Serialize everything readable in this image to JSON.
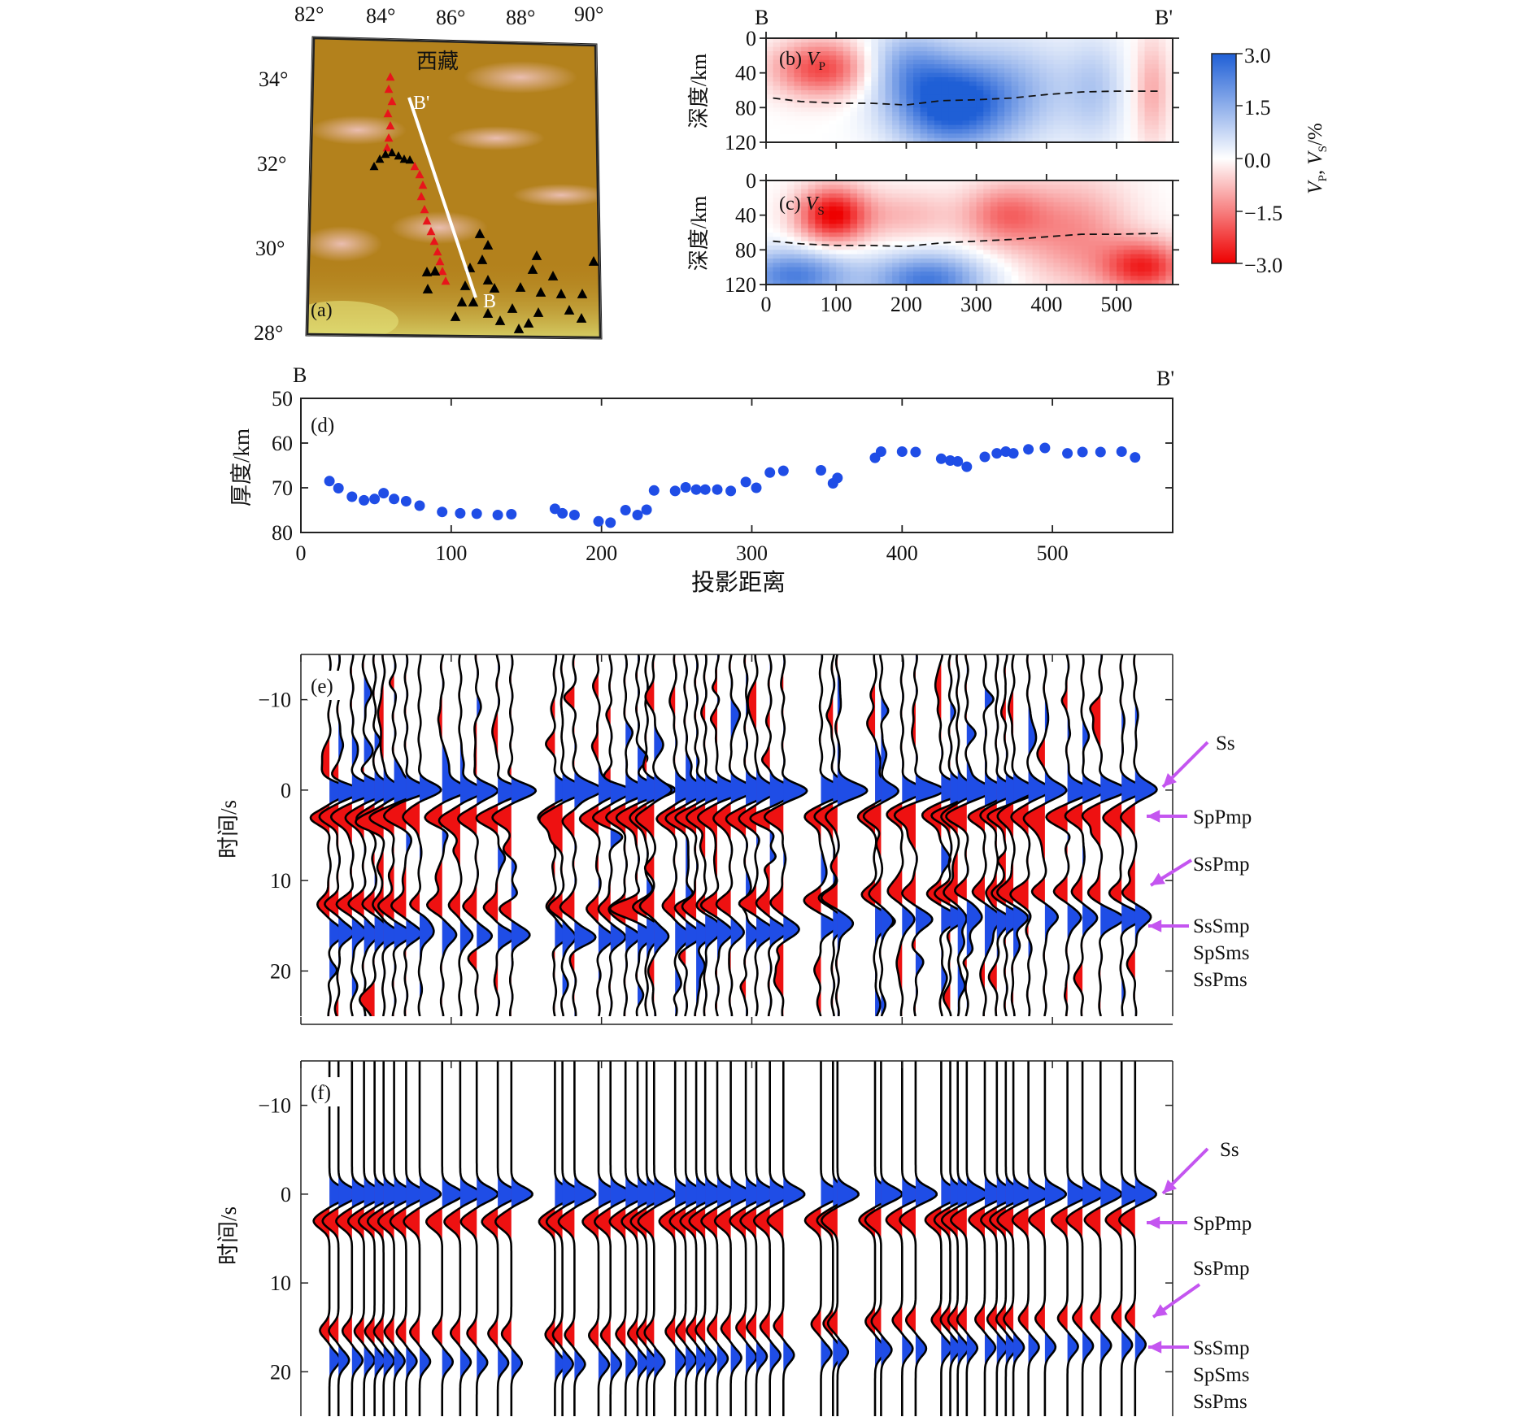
{
  "map_panel": {
    "panel_label": "(a)",
    "region_label": "西藏",
    "profile_start_label": "B",
    "profile_end_label": "B'",
    "lon_ticks": [
      "82°",
      "84°",
      "86°",
      "88°",
      "90°"
    ],
    "lat_ticks": [
      "34°",
      "32°",
      "30°",
      "28°"
    ],
    "colors": {
      "terrain": "#b3811c",
      "terrain_light": "#c9a75c",
      "lowland": "#d8d36a",
      "profile_line": "#ffffff",
      "station_red": "#e8141b",
      "station_black": "#000000"
    }
  },
  "chart_data": [
    {
      "id": "b",
      "type": "heatmap",
      "panel_label": "(b)",
      "quantity": "V",
      "quantity_subscript": "P",
      "left_label": "B",
      "right_label": "B'",
      "ylabel": "深度/km",
      "x_ticks": [
        0,
        100,
        200,
        300,
        400,
        500
      ],
      "y_ticks": [
        0,
        40,
        80,
        120
      ],
      "xlim": [
        0,
        580
      ],
      "ylim": [
        0,
        120
      ],
      "anomalies": [
        {
          "x": 80,
          "depth": 35,
          "value": -2.2,
          "rx": 70,
          "rz": 32
        },
        {
          "x": 260,
          "depth": 78,
          "value": 3.0,
          "rx": 80,
          "rz": 48
        },
        {
          "x": 200,
          "depth": 30,
          "value": 1.4,
          "rx": 60,
          "rz": 40
        },
        {
          "x": 350,
          "depth": 60,
          "value": 1.2,
          "rx": 100,
          "rz": 60
        },
        {
          "x": 470,
          "depth": 60,
          "value": 0.8,
          "rx": 40,
          "rz": 60
        },
        {
          "x": 550,
          "depth": 60,
          "value": -1.0,
          "rx": 25,
          "rz": 60
        }
      ],
      "moho_dashed": {
        "x": [
          10,
          50,
          100,
          150,
          200,
          250,
          300,
          350,
          400,
          450,
          500,
          560
        ],
        "depth": [
          69,
          73,
          75,
          75,
          77,
          72,
          71,
          69,
          65,
          62,
          61,
          61
        ]
      }
    },
    {
      "id": "c",
      "type": "heatmap",
      "panel_label": "(c)",
      "quantity": "V",
      "quantity_subscript": "S",
      "ylabel": "深度/km",
      "xlabel": "",
      "x_ticks": [
        0,
        100,
        200,
        300,
        400,
        500
      ],
      "y_ticks": [
        0,
        40,
        80,
        120
      ],
      "xlim": [
        0,
        580
      ],
      "ylim": [
        0,
        120
      ],
      "anomalies": [
        {
          "x": 95,
          "depth": 40,
          "value": -3.0,
          "rx": 50,
          "rz": 32
        },
        {
          "x": 40,
          "depth": 110,
          "value": 2.4,
          "rx": 80,
          "rz": 30
        },
        {
          "x": 230,
          "depth": 115,
          "value": 2.5,
          "rx": 80,
          "rz": 30
        },
        {
          "x": 200,
          "depth": 40,
          "value": -0.8,
          "rx": 70,
          "rz": 30
        },
        {
          "x": 340,
          "depth": 40,
          "value": -1.6,
          "rx": 60,
          "rz": 35
        },
        {
          "x": 440,
          "depth": 60,
          "value": -1.3,
          "rx": 80,
          "rz": 60
        },
        {
          "x": 540,
          "depth": 100,
          "value": -2.5,
          "rx": 60,
          "rz": 30
        }
      ],
      "moho_dashed": {
        "x": [
          10,
          50,
          100,
          150,
          200,
          250,
          300,
          350,
          400,
          450,
          500,
          560
        ],
        "depth": [
          70,
          73,
          75,
          75,
          76,
          72,
          70,
          68,
          65,
          62,
          62,
          61
        ]
      }
    },
    {
      "id": "colorbar",
      "type": "colorbar",
      "label_main": "V",
      "label_sub_p": "P",
      "label_sep": ", ",
      "label_sub_s": "S",
      "label_unit": "/%",
      "ticks": [
        "3.0",
        "1.5",
        "0.0",
        "−1.5",
        "−3.0"
      ],
      "range": [
        -3.0,
        3.0
      ],
      "colors": {
        "positive": "#1f5fd6",
        "neutral": "#ffffff",
        "negative": "#ee0000"
      }
    },
    {
      "id": "d",
      "type": "scatter",
      "panel_label": "(d)",
      "left_label": "B",
      "right_label": "B'",
      "xlabel": "投影距离",
      "ylabel": "厚度/km",
      "x_ticks": [
        0,
        100,
        200,
        300,
        400,
        500
      ],
      "y_ticks": [
        50,
        60,
        70,
        80
      ],
      "xlim": [
        0,
        580
      ],
      "ylim": [
        80,
        50
      ],
      "color": "#1f4de6",
      "points": [
        [
          19,
          68.5
        ],
        [
          25,
          70.1
        ],
        [
          34,
          72
        ],
        [
          42,
          72.8
        ],
        [
          49,
          72.5
        ],
        [
          55,
          71.2
        ],
        [
          62,
          72.5
        ],
        [
          70,
          73
        ],
        [
          79,
          74
        ],
        [
          94,
          75.4
        ],
        [
          106,
          75.7
        ],
        [
          117,
          75.8
        ],
        [
          131,
          76.1
        ],
        [
          140,
          75.9
        ],
        [
          169,
          74.7
        ],
        [
          174,
          75.7
        ],
        [
          182,
          76.1
        ],
        [
          198,
          77.5
        ],
        [
          206,
          77.8
        ],
        [
          216,
          75
        ],
        [
          224,
          76.1
        ],
        [
          230,
          74.9
        ],
        [
          235,
          70.6
        ],
        [
          249,
          70.7
        ],
        [
          256,
          69.9
        ],
        [
          263,
          70.4
        ],
        [
          269,
          70.4
        ],
        [
          277,
          70.4
        ],
        [
          286,
          70.7
        ],
        [
          296,
          68.7
        ],
        [
          303,
          70
        ],
        [
          312,
          66.6
        ],
        [
          321,
          66.2
        ],
        [
          346,
          66.1
        ],
        [
          354,
          69
        ],
        [
          357,
          67.8
        ],
        [
          382,
          63.3
        ],
        [
          386,
          61.9
        ],
        [
          400,
          61.9
        ],
        [
          409,
          62
        ],
        [
          426,
          63.5
        ],
        [
          432,
          63.9
        ],
        [
          437,
          64.1
        ],
        [
          443,
          65.3
        ],
        [
          455,
          63.1
        ],
        [
          463,
          62.3
        ],
        [
          469,
          61.9
        ],
        [
          474,
          62.3
        ],
        [
          484,
          61.4
        ],
        [
          495,
          61.1
        ],
        [
          510,
          62.3
        ],
        [
          520,
          62
        ],
        [
          532,
          62
        ],
        [
          546,
          61.9
        ],
        [
          555,
          63.2
        ]
      ]
    },
    {
      "id": "e",
      "type": "line",
      "panel_label": "(e)",
      "ylabel": "时间/s",
      "y_ticks": [
        "−10",
        "0",
        "10",
        "20"
      ],
      "ylim": [
        -15,
        25
      ],
      "trace_color": "#000000",
      "positive_fill": "#1f4de6",
      "negative_fill": "#ee1111",
      "arrow_color": "#c455f0",
      "phase_labels": [
        "Ss",
        "SpPmp",
        "SsPmp",
        "SsSmp",
        "SpSms",
        "SsPms"
      ],
      "phases_at_distance": {
        "x": [
          0,
          100,
          200,
          300,
          400,
          500,
          560
        ],
        "t_SpPmp": [
          3.0,
          3.1,
          3.1,
          3.1,
          2.8,
          2.9,
          2.9
        ],
        "t_SsPmp": [
          12.5,
          12.8,
          13.1,
          12.6,
          11.4,
          11.3,
          11.3
        ],
        "t_SsSmp": [
          15.8,
          16.0,
          16.3,
          15.7,
          14.2,
          14.1,
          14.0
        ]
      },
      "trace_x": [
        19,
        25,
        34,
        42,
        49,
        55,
        62,
        70,
        79,
        94,
        106,
        117,
        131,
        140,
        169,
        174,
        182,
        198,
        206,
        216,
        224,
        230,
        235,
        249,
        256,
        263,
        269,
        277,
        286,
        296,
        303,
        312,
        321,
        346,
        354,
        357,
        382,
        386,
        400,
        409,
        426,
        432,
        437,
        443,
        455,
        463,
        469,
        474,
        484,
        495,
        510,
        520,
        532,
        546,
        555
      ]
    },
    {
      "id": "f",
      "type": "line",
      "panel_label": "(f)",
      "ylabel": "时间/s",
      "y_ticks": [
        "−10",
        "0",
        "10",
        "20"
      ],
      "ylim": [
        -15,
        25
      ],
      "trace_color": "#000000",
      "positive_fill": "#1f4de6",
      "negative_fill": "#ee1111",
      "arrow_color": "#c455f0",
      "phase_labels": [
        "Ss",
        "SpPmp",
        "SsPmp",
        "SsSmp",
        "SpSms",
        "SsPms"
      ],
      "phases_at_distance": {
        "x": [
          0,
          100,
          200,
          300,
          400,
          500,
          560
        ],
        "t_SpPmp": [
          3.0,
          3.1,
          3.1,
          3.0,
          2.9,
          2.9,
          2.9
        ],
        "t_SsPmp": [
          15.3,
          15.6,
          15.9,
          15.0,
          14.2,
          14.0,
          13.8
        ],
        "t_SsSmp": [
          18.6,
          18.9,
          19.2,
          18.3,
          17.4,
          17.2,
          16.9
        ]
      },
      "trace_x": [
        19,
        25,
        34,
        42,
        49,
        55,
        62,
        70,
        79,
        94,
        106,
        117,
        131,
        140,
        169,
        174,
        182,
        198,
        206,
        216,
        224,
        230,
        235,
        249,
        256,
        263,
        269,
        277,
        286,
        296,
        303,
        312,
        321,
        346,
        354,
        357,
        382,
        386,
        400,
        409,
        426,
        432,
        437,
        443,
        455,
        463,
        469,
        474,
        484,
        495,
        510,
        520,
        532,
        546,
        555
      ]
    }
  ]
}
